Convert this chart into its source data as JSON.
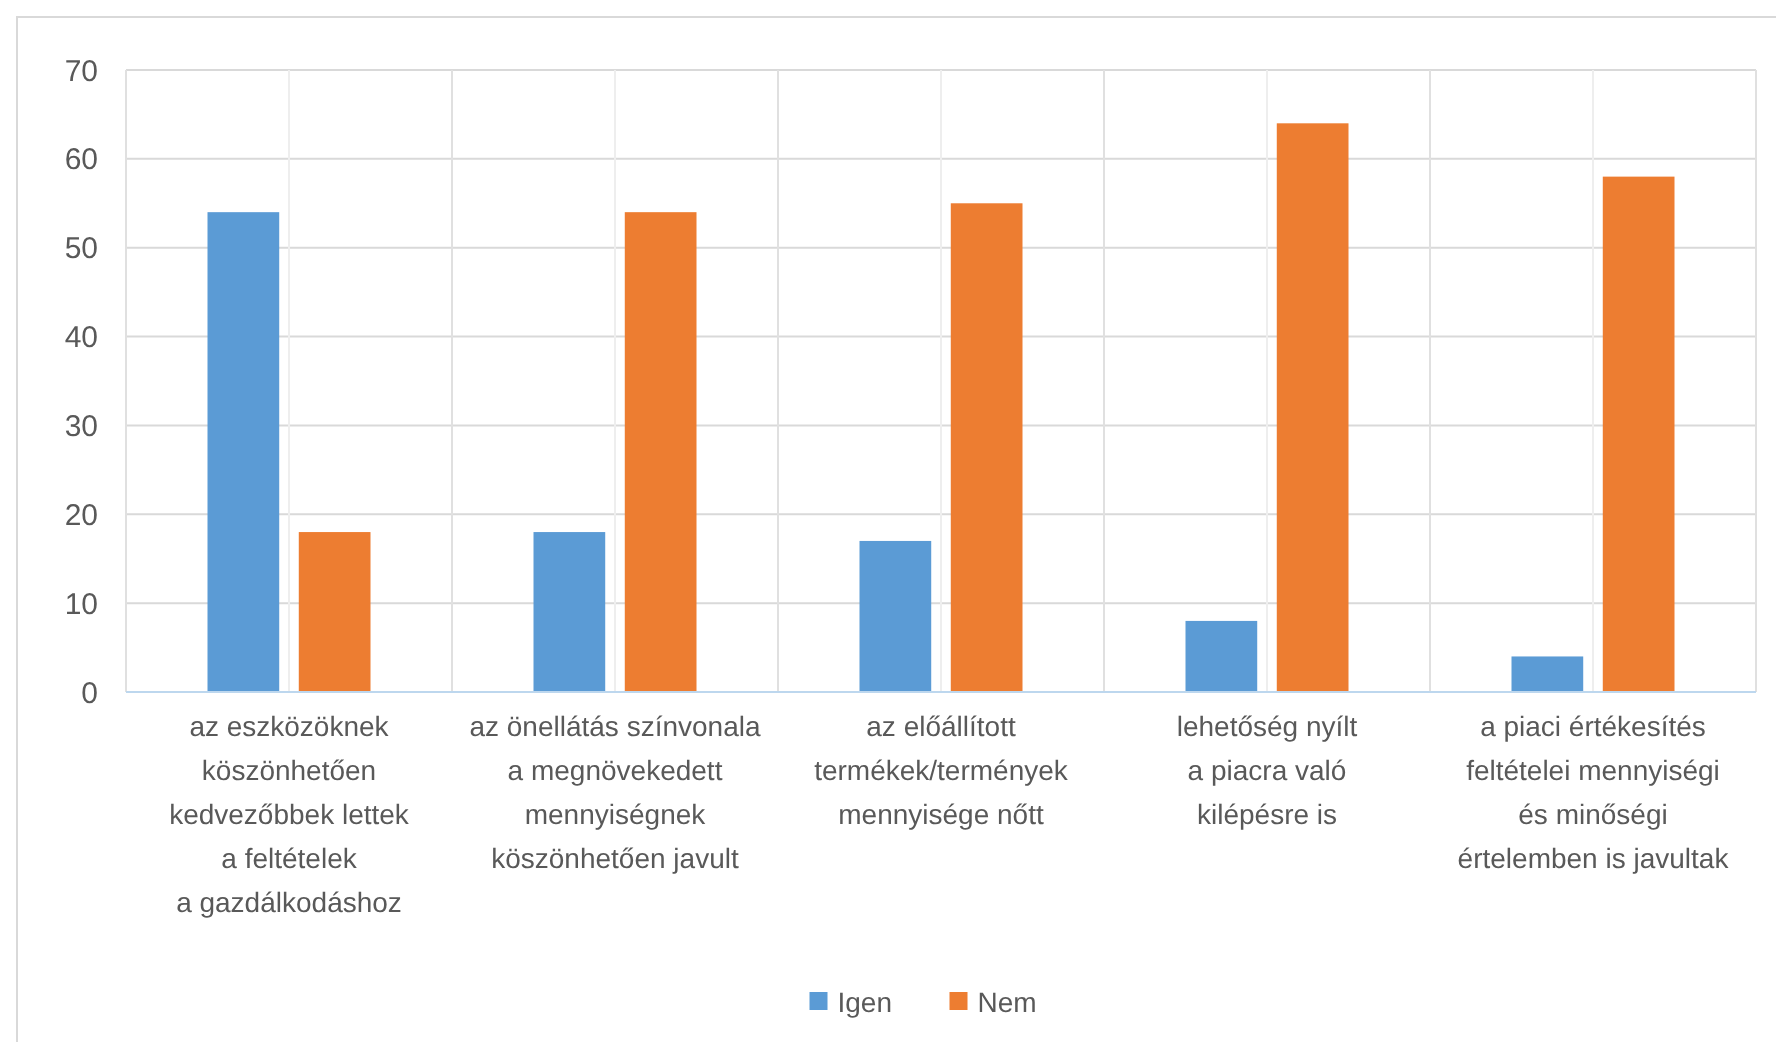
{
  "chart_data": {
    "type": "bar",
    "categories": [
      "az eszközöknek\nköszönhetően\nkedvezőbbek lettek\na feltételek\na gazdálkodáshoz",
      "az önellátás színvonala\na megnövekedett\nmennyiségnek\nköszönhetően javult",
      "az előállított\ntermékek/termények\nmennyisége nőtt",
      "lehetőség nyílt\na piacra való\nkilépésre is",
      "a piaci értékesítés\nfeltételei mennyiségi\nés minőségi\nértelemben is javultak"
    ],
    "series": [
      {
        "name": "Igen",
        "color": "#5b9bd5",
        "values": [
          54,
          18,
          17,
          8,
          4
        ]
      },
      {
        "name": "Nem",
        "color": "#ed7d31",
        "values": [
          18,
          54,
          55,
          64,
          58
        ]
      }
    ],
    "ylim": [
      0,
      70
    ],
    "yticks": [
      0,
      10,
      20,
      30,
      40,
      50,
      60,
      70
    ],
    "grid": true,
    "legend": "bottom"
  }
}
